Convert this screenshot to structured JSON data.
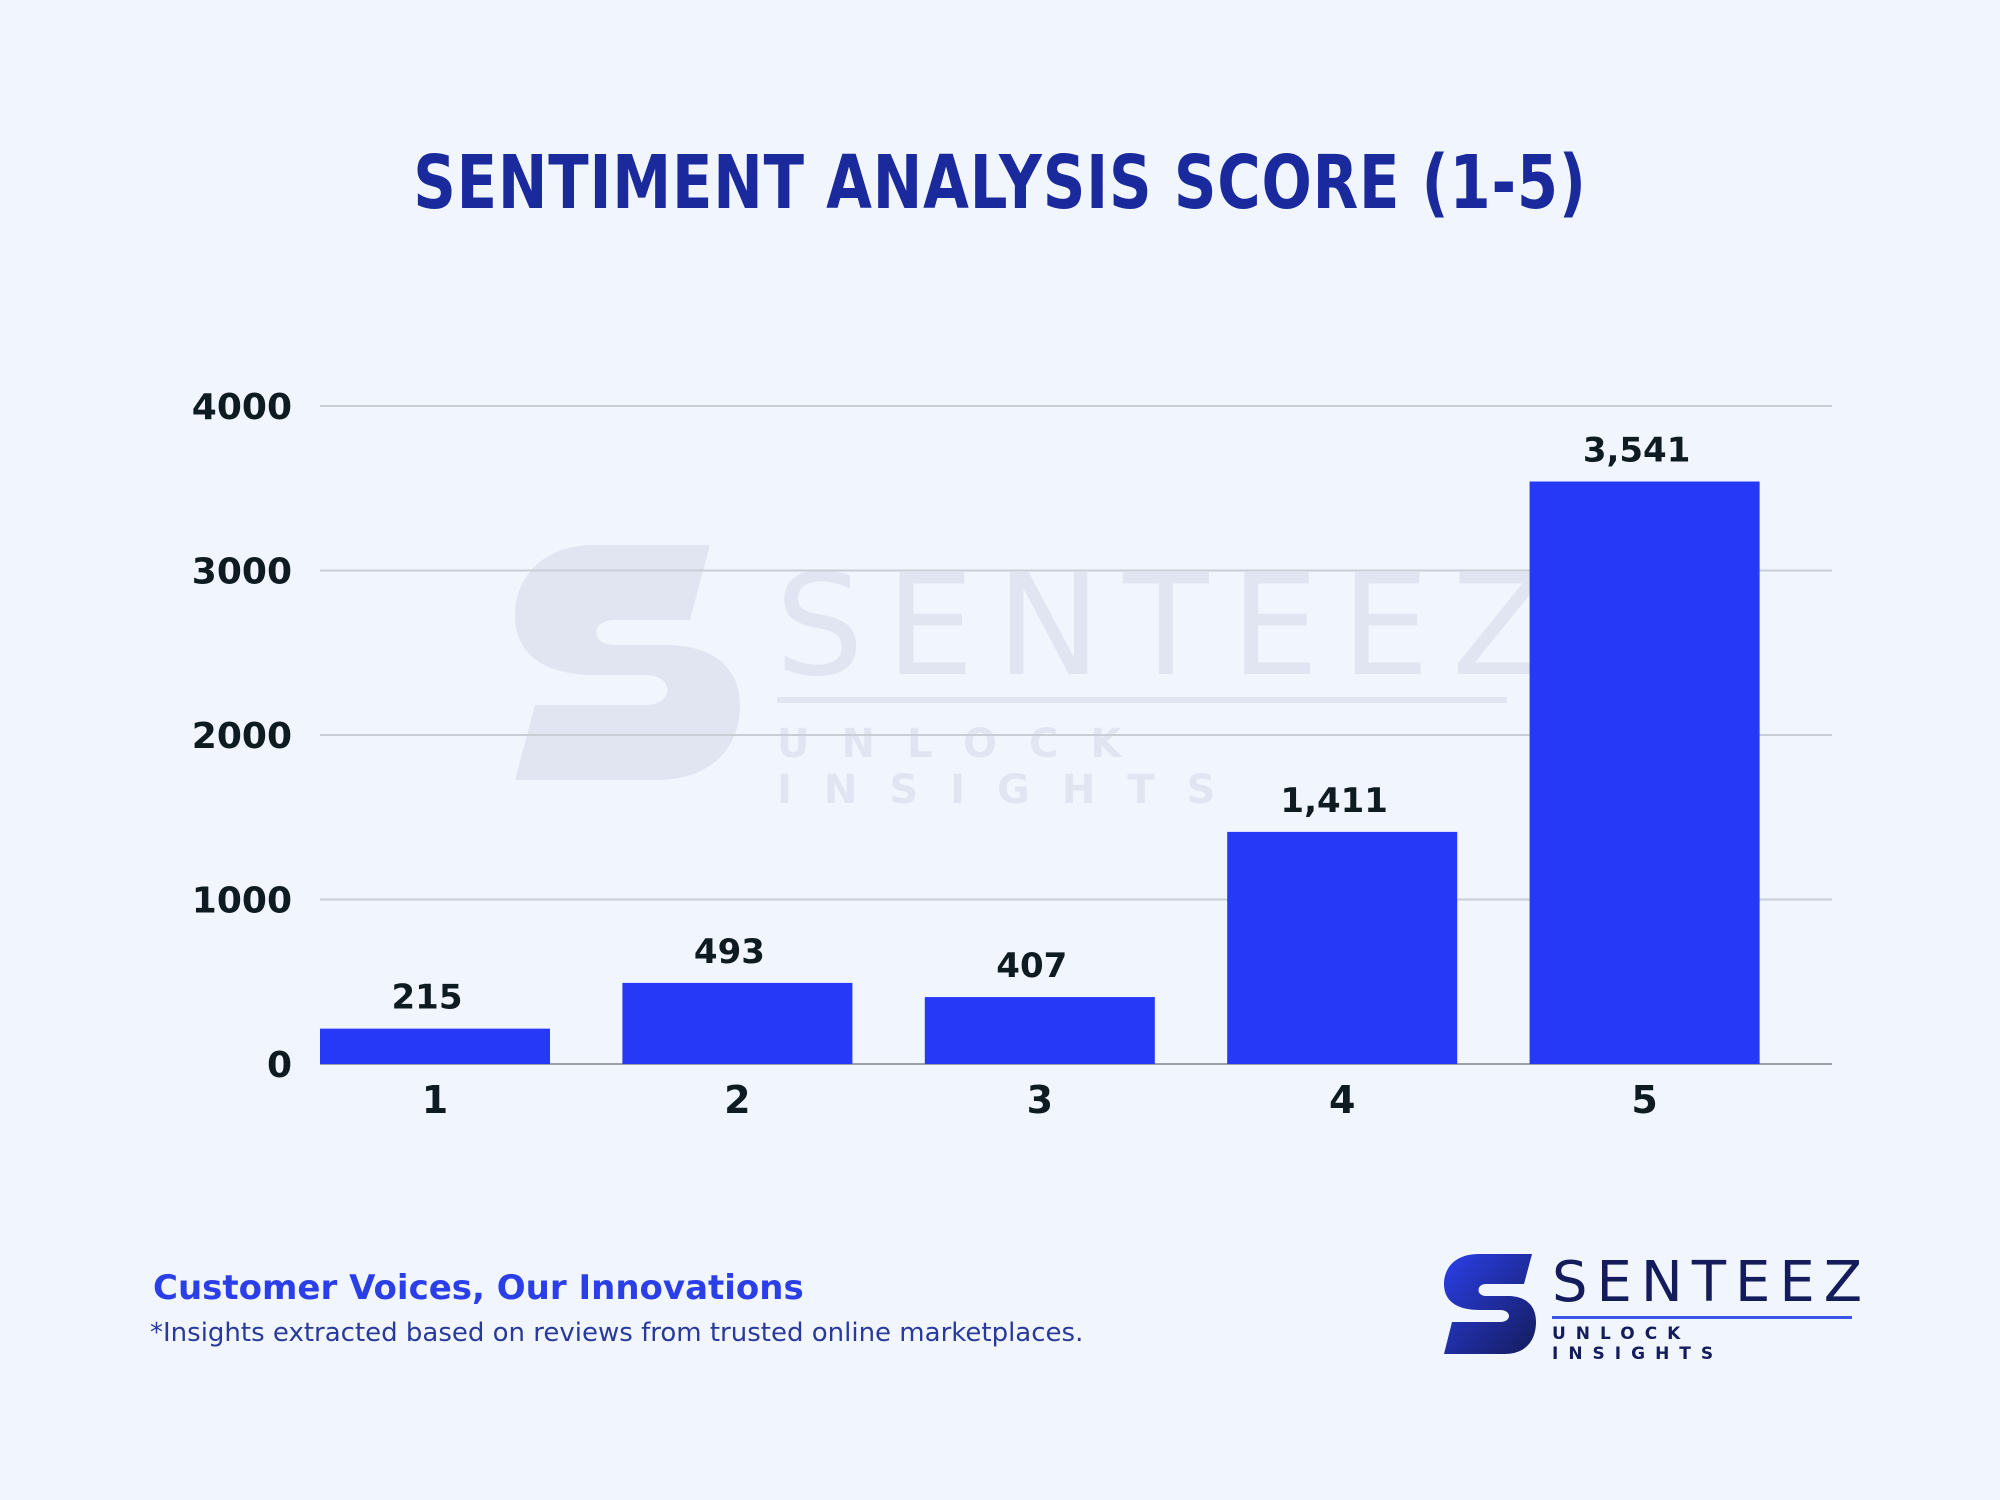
{
  "chart_data": {
    "type": "bar",
    "title": "SENTIMENT ANALYSIS SCORE (1-5)",
    "categories": [
      "1",
      "2",
      "3",
      "4",
      "5"
    ],
    "values": [
      215,
      493,
      407,
      1411,
      3541
    ],
    "value_labels": [
      "215",
      "493",
      "407",
      "1,411",
      "3,541"
    ],
    "ylim": [
      0,
      4000
    ],
    "yticks": [
      0,
      1000,
      2000,
      3000,
      4000
    ],
    "ytick_labels": [
      "0",
      "1000",
      "2000",
      "3000",
      "4000"
    ],
    "xlabel": "",
    "ylabel": "",
    "grid": true,
    "bar_color": "#2639f7",
    "grid_color": "#c9ced6"
  },
  "footer": {
    "tagline": "Customer Voices, Our Innovations",
    "footnote": "*Insights extracted based on reviews from trusted online marketplaces."
  },
  "logo": {
    "name": "SENTEEZ",
    "slogan": "UNLOCK INSIGHTS",
    "icon": "s-letter-logo-icon",
    "colors": {
      "dark": "#141c5c",
      "accent": "#2b3fe8"
    }
  },
  "watermark": {
    "name": "SENTEEZ",
    "slogan": "UNLOCK INSIGHTS"
  },
  "colors": {
    "background": "#f1f5fd",
    "title": "#1a2a9c",
    "text": "#0e1b22"
  }
}
